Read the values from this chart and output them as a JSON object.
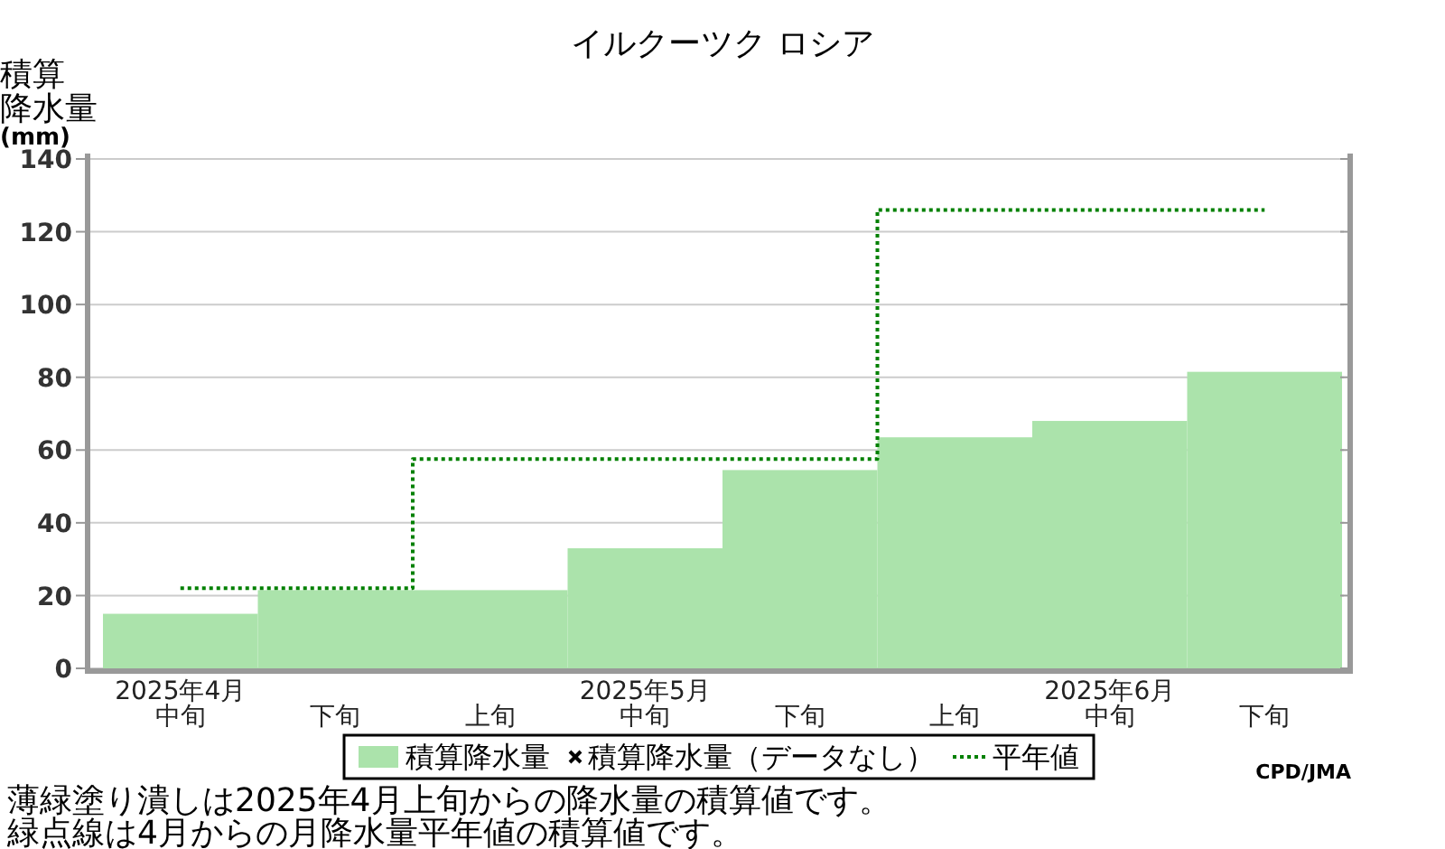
{
  "chart_data": {
    "type": "bar",
    "title": "イルクーツク ロシア",
    "ylabel": "積算降水量(mm)",
    "categories": [
      "2025年4月中旬",
      "下旬",
      "上旬",
      "2025年5月中旬",
      "下旬",
      "上旬",
      "2025年6月中旬",
      "下旬"
    ],
    "series": [
      {
        "name": "積算降水量",
        "color": "#abe3ab",
        "values": [
          15,
          21.5,
          21.5,
          33,
          54.5,
          63.5,
          68,
          81.5
        ]
      },
      {
        "name": "積算降水量（データなし）",
        "type": "scatter",
        "marker": "cross",
        "color": "#000000",
        "values": [
          null,
          null,
          null,
          null,
          null,
          null,
          null,
          null
        ]
      },
      {
        "name": "平年値",
        "type": "step",
        "color": "#008000",
        "line_style": "dotted",
        "values": [
          22,
          22,
          57.5,
          57.5,
          57.5,
          126,
          126,
          126
        ]
      }
    ],
    "ylim": [
      0,
      140
    ],
    "yticks": [
      0,
      20,
      40,
      60,
      80,
      100,
      120,
      140
    ],
    "grid": "y",
    "legend": "bottom",
    "annotations": [
      "薄緑塗り潰しは2025年4月上旬からの降水量の積算値です。",
      "緑点線は4月からの月降水量平年値の積算値です。",
      "CPD/JMA"
    ]
  }
}
